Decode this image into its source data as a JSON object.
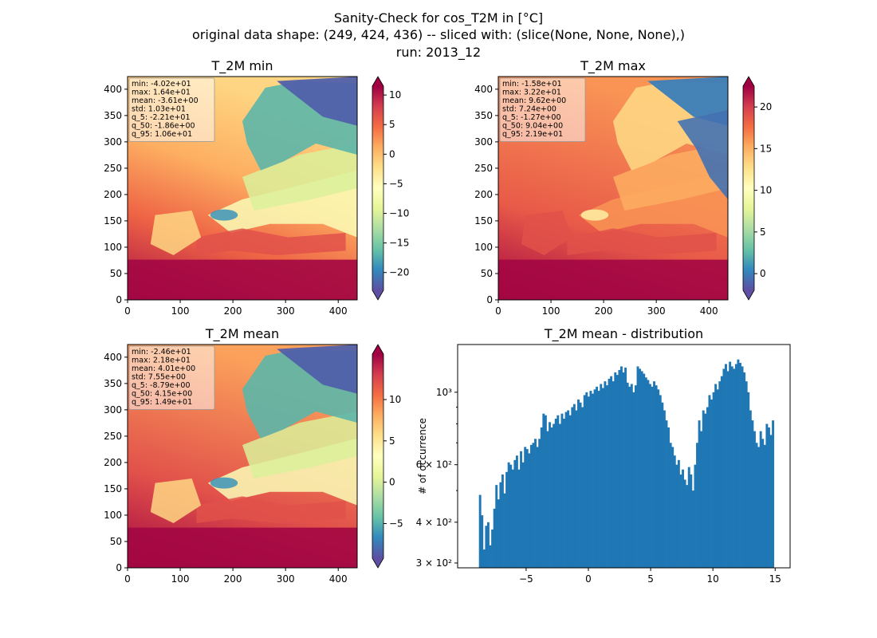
{
  "suptitle": {
    "line1": "Sanity-Check for cos_T2M in [°C]",
    "line2": "original data shape: (249, 424, 436) -- sliced with: (slice(None, None, None),)",
    "line3": "run: 2013_12"
  },
  "chart_data": [
    {
      "type": "heatmap",
      "title": "T_2M min",
      "xlim": [
        0,
        436
      ],
      "ylim": [
        0,
        424
      ],
      "x_ticks": [
        "0",
        "100",
        "200",
        "300",
        "400"
      ],
      "y_ticks": [
        "0",
        "50",
        "100",
        "150",
        "200",
        "250",
        "300",
        "350",
        "400"
      ],
      "colormap": "Spectral_r",
      "colorbar": {
        "range": [
          -23,
          11.5
        ],
        "ticks": [
          "−20",
          "−15",
          "−10",
          "−5",
          "0",
          "5",
          "10"
        ],
        "extend": "both"
      },
      "stats": [
        "min: -4.02e+01",
        "max: 1.64e+01",
        "mean: -3.61e+00",
        "std: 1.03e+01",
        "q_5: -2.21e+01",
        "q_50: -1.86e+00",
        "q_95: 1.06e+01"
      ]
    },
    {
      "type": "heatmap",
      "title": "T_2M max",
      "xlim": [
        0,
        436
      ],
      "ylim": [
        0,
        424
      ],
      "x_ticks": [
        "0",
        "100",
        "200",
        "300",
        "400"
      ],
      "y_ticks": [
        "0",
        "50",
        "100",
        "150",
        "200",
        "250",
        "300",
        "350",
        "400"
      ],
      "colormap": "Spectral_r",
      "colorbar": {
        "range": [
          -2,
          22.5
        ],
        "ticks": [
          "0",
          "5",
          "10",
          "15",
          "20"
        ],
        "extend": "both"
      },
      "stats": [
        "min: -1.58e+01",
        "max: 3.22e+01",
        "mean: 9.62e+00",
        "std: 7.24e+00",
        "q_5: -1.27e+00",
        "q_50: 9.04e+00",
        "q_95: 2.19e+01"
      ]
    },
    {
      "type": "heatmap",
      "title": "T_2M mean",
      "xlim": [
        0,
        436
      ],
      "ylim": [
        0,
        424
      ],
      "x_ticks": [
        "0",
        "100",
        "200",
        "300",
        "400"
      ],
      "y_ticks": [
        "0",
        "50",
        "100",
        "150",
        "200",
        "250",
        "300",
        "350",
        "400"
      ],
      "colormap": "Spectral_r",
      "colorbar": {
        "range": [
          -9.2,
          15.5
        ],
        "ticks": [
          "−5",
          "0",
          "5",
          "10"
        ],
        "extend": "both"
      },
      "stats": [
        "min: -2.46e+01",
        "max: 2.18e+01",
        "mean: 4.01e+00",
        "std: 7.55e+00",
        "q_5: -8.79e+00",
        "q_50: 4.15e+00",
        "q_95: 1.49e+01"
      ]
    },
    {
      "type": "bar",
      "title": "T_2M mean - distribution",
      "ylabel": "# of occurrence",
      "xlabel": "",
      "yscale": "log",
      "xlim": [
        -10.5,
        16.2
      ],
      "ylim": [
        290,
        1400
      ],
      "x_ticks": [
        "−5",
        "0",
        "5",
        "10",
        "15"
      ],
      "y_ticks": [
        "3 × 10²",
        "4 × 10²",
        "6 × 10²",
        "10³"
      ],
      "bar_color": "#1f77b4",
      "bins": {
        "start": -8.79,
        "end": 14.9
      },
      "values": [
        485,
        420,
        330,
        390,
        400,
        340,
        380,
        440,
        520,
        470,
        530,
        560,
        490,
        570,
        610,
        600,
        580,
        620,
        640,
        580,
        660,
        610,
        680,
        670,
        650,
        690,
        700,
        720,
        680,
        720,
        780,
        860,
        850,
        760,
        810,
        780,
        800,
        830,
        850,
        800,
        860,
        830,
        870,
        880,
        850,
        900,
        920,
        880,
        950,
        930,
        900,
        980,
        1000,
        970,
        1010,
        990,
        1020,
        1040,
        1010,
        1060,
        1030,
        1080,
        1050,
        1100,
        1120,
        1080,
        1150,
        1130,
        1170,
        1200,
        1150,
        1190,
        1070,
        1040,
        1060,
        1000,
        1050,
        1200,
        1180,
        1160,
        1140,
        1110,
        1090,
        1060,
        1040,
        1080,
        1050,
        1020,
        980,
        930,
        880,
        820,
        780,
        700,
        680,
        640,
        600,
        620,
        560,
        580,
        540,
        520,
        590,
        560,
        500,
        600,
        700,
        820,
        760,
        880,
        860,
        900,
        980,
        950,
        1000,
        1060,
        1020,
        1080,
        1120,
        1180,
        1220,
        1160,
        1240,
        1200,
        1180,
        1220,
        1260,
        1230,
        1200,
        1150,
        1080,
        1000,
        880,
        820,
        760,
        700,
        680,
        760,
        720,
        690,
        800,
        780,
        740,
        820
      ]
    }
  ]
}
